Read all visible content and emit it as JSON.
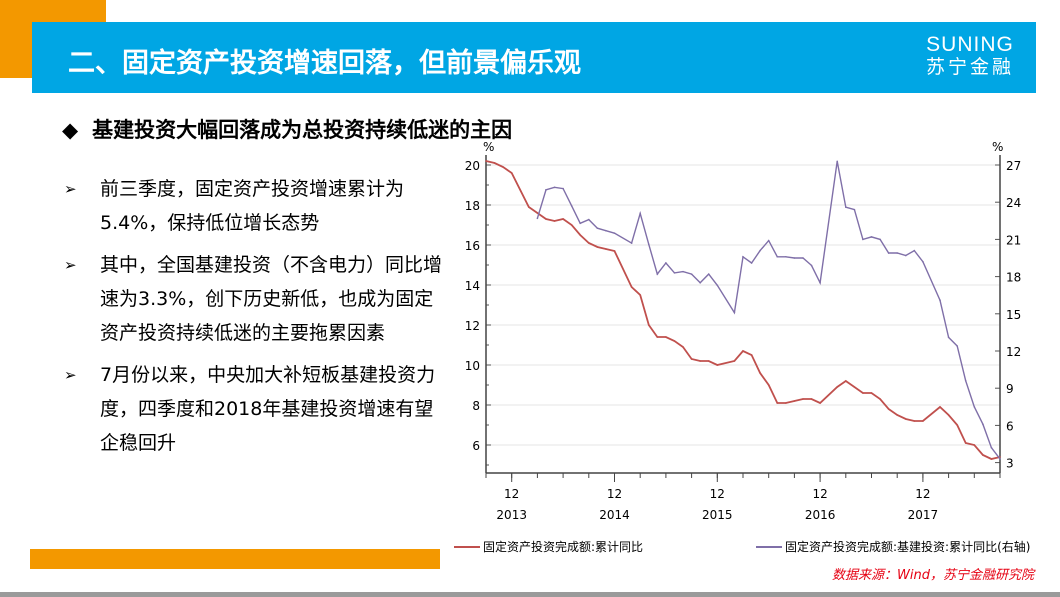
{
  "header": {
    "title": "二、固定资产投资增速回落，但前景偏乐观",
    "logo_en": "SUNING",
    "logo_cn": "苏宁金融",
    "colors": {
      "bar": "#00a6e4",
      "accent": "#f39800"
    }
  },
  "subtitle": {
    "icon": "diamond-icon",
    "text": "基建投资大幅回落成为总投资持续低迷的主因"
  },
  "bullets": [
    {
      "icon": "arrow-right-icon",
      "text": "前三季度，固定资产投资增速累计为5.4%，保持低位增长态势"
    },
    {
      "icon": "arrow-right-icon",
      "text": "其中，全国基建投资（不含电力）同比增速为3.3%，创下历史新低，也成为固定资产投资持续低迷的主要拖累因素"
    },
    {
      "icon": "arrow-right-icon",
      "text": "7月份以来，中央加大补短板基建投资力度，四季度和2018年基建投资增速有望企稳回升"
    }
  ],
  "source": "数据来源：Wind，苏宁金融研究院",
  "chart_data": {
    "type": "line",
    "title": "",
    "ylabel": "%",
    "y2label": "%",
    "ylim": [
      4.6,
      20.5
    ],
    "y2lim": [
      2.3,
      28
    ],
    "yticks": [
      "6",
      "8",
      "10",
      "12",
      "14",
      "16",
      "18",
      "20"
    ],
    "y2ticks": [
      "3",
      "6",
      "9",
      "12",
      "15",
      "18",
      "21",
      "24",
      "27"
    ],
    "xticks": [
      {
        "month": "12",
        "year": "2013"
      },
      {
        "month": "12",
        "year": "2014"
      },
      {
        "month": "12",
        "year": "2015"
      },
      {
        "month": "12",
        "year": "2016"
      },
      {
        "month": "12",
        "year": "2017"
      }
    ],
    "grid": true,
    "legend_position": "bottom",
    "series": [
      {
        "name": "固定资产投资完成额:累计同比",
        "axis": "left",
        "color": "#c0504d",
        "points": [
          [
            "2013-09",
            20.2
          ],
          [
            "2013-10",
            20.1
          ],
          [
            "2013-11",
            19.9
          ],
          [
            "2013-12",
            19.6
          ],
          [
            "2014-02",
            17.9
          ],
          [
            "2014-03",
            17.6
          ],
          [
            "2014-04",
            17.3
          ],
          [
            "2014-05",
            17.2
          ],
          [
            "2014-06",
            17.3
          ],
          [
            "2014-07",
            17.0
          ],
          [
            "2014-08",
            16.5
          ],
          [
            "2014-09",
            16.1
          ],
          [
            "2014-10",
            15.9
          ],
          [
            "2014-11",
            15.8
          ],
          [
            "2014-12",
            15.7
          ],
          [
            "2015-02",
            13.9
          ],
          [
            "2015-03",
            13.5
          ],
          [
            "2015-04",
            12.0
          ],
          [
            "2015-05",
            11.4
          ],
          [
            "2015-06",
            11.4
          ],
          [
            "2015-07",
            11.2
          ],
          [
            "2015-08",
            10.9
          ],
          [
            "2015-09",
            10.3
          ],
          [
            "2015-10",
            10.2
          ],
          [
            "2015-11",
            10.2
          ],
          [
            "2015-12",
            10.0
          ],
          [
            "2016-02",
            10.2
          ],
          [
            "2016-03",
            10.7
          ],
          [
            "2016-04",
            10.5
          ],
          [
            "2016-05",
            9.6
          ],
          [
            "2016-06",
            9.0
          ],
          [
            "2016-07",
            8.1
          ],
          [
            "2016-08",
            8.1
          ],
          [
            "2016-09",
            8.2
          ],
          [
            "2016-10",
            8.3
          ],
          [
            "2016-11",
            8.3
          ],
          [
            "2016-12",
            8.1
          ],
          [
            "2017-02",
            8.9
          ],
          [
            "2017-03",
            9.2
          ],
          [
            "2017-04",
            8.9
          ],
          [
            "2017-05",
            8.6
          ],
          [
            "2017-06",
            8.6
          ],
          [
            "2017-07",
            8.3
          ],
          [
            "2017-08",
            7.8
          ],
          [
            "2017-09",
            7.5
          ],
          [
            "2017-10",
            7.3
          ],
          [
            "2017-11",
            7.2
          ],
          [
            "2017-12",
            7.2
          ],
          [
            "2018-02",
            7.9
          ],
          [
            "2018-03",
            7.5
          ],
          [
            "2018-04",
            7.0
          ],
          [
            "2018-05",
            6.1
          ],
          [
            "2018-06",
            6.0
          ],
          [
            "2018-07",
            5.5
          ],
          [
            "2018-08",
            5.3
          ],
          [
            "2018-09",
            5.4
          ]
        ]
      },
      {
        "name": "固定资产投资完成额:基建投资:累计同比(右轴)",
        "axis": "right",
        "color": "#7f6fa8",
        "points": [
          [
            "2014-03",
            22.7
          ],
          [
            "2014-04",
            25.0
          ],
          [
            "2014-05",
            25.2
          ],
          [
            "2014-06",
            25.1
          ],
          [
            "2014-07",
            23.7
          ],
          [
            "2014-08",
            22.3
          ],
          [
            "2014-09",
            22.6
          ],
          [
            "2014-10",
            21.9
          ],
          [
            "2014-11",
            21.7
          ],
          [
            "2014-12",
            21.5
          ],
          [
            "2015-02",
            20.7
          ],
          [
            "2015-03",
            23.1
          ],
          [
            "2015-04",
            20.6
          ],
          [
            "2015-05",
            18.2
          ],
          [
            "2015-06",
            19.1
          ],
          [
            "2015-07",
            18.3
          ],
          [
            "2015-08",
            18.4
          ],
          [
            "2015-09",
            18.2
          ],
          [
            "2015-10",
            17.5
          ],
          [
            "2015-11",
            18.2
          ],
          [
            "2015-12",
            17.3
          ],
          [
            "2016-02",
            15.1
          ],
          [
            "2016-03",
            19.6
          ],
          [
            "2016-04",
            19.1
          ],
          [
            "2016-05",
            20.1
          ],
          [
            "2016-06",
            20.9
          ],
          [
            "2016-07",
            19.6
          ],
          [
            "2016-08",
            19.6
          ],
          [
            "2016-09",
            19.5
          ],
          [
            "2016-10",
            19.5
          ],
          [
            "2016-11",
            18.9
          ],
          [
            "2016-12",
            17.5
          ],
          [
            "2017-02",
            27.3
          ],
          [
            "2017-03",
            23.6
          ],
          [
            "2017-04",
            23.4
          ],
          [
            "2017-05",
            21.0
          ],
          [
            "2017-06",
            21.2
          ],
          [
            "2017-07",
            21.0
          ],
          [
            "2017-08",
            19.9
          ],
          [
            "2017-09",
            19.9
          ],
          [
            "2017-10",
            19.7
          ],
          [
            "2017-11",
            20.1
          ],
          [
            "2017-12",
            19.2
          ],
          [
            "2018-02",
            16.1
          ],
          [
            "2018-03",
            13.1
          ],
          [
            "2018-04",
            12.4
          ],
          [
            "2018-05",
            9.6
          ],
          [
            "2018-06",
            7.5
          ],
          [
            "2018-07",
            6.1
          ],
          [
            "2018-08",
            4.2
          ],
          [
            "2018-09",
            3.3
          ]
        ]
      }
    ]
  }
}
